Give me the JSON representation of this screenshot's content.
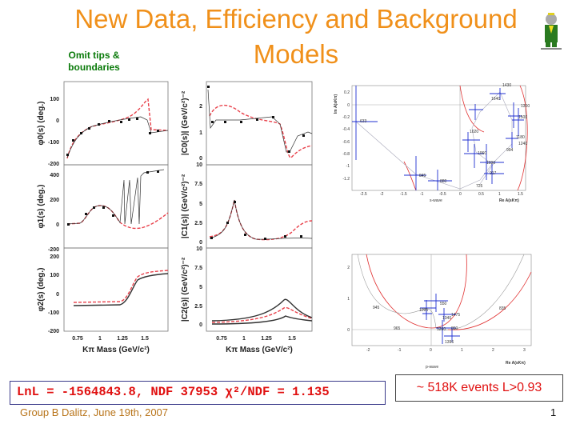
{
  "slide": {
    "title": "New Data, Efficiency and Background Models",
    "note": "Omit tips & boundaries",
    "fit_result": "LnL = -1564843.8, NDF 37953 χ²/NDF = 1.135",
    "events_box": "~ 518K events L>0.93",
    "footer": "Group B Dalitz, June 19th, 2007",
    "page_number": "1",
    "logo": "babar-elephant-logo"
  },
  "left_plots": {
    "x_ticks": [
      "0.75",
      "1",
      "1.25",
      "1.5"
    ],
    "x_label": "Kπ Mass (GeV/c²)",
    "phi0": {
      "ylabel": "φ0(s) (deg.)",
      "ticks": [
        "100",
        "0",
        "-100",
        "-200"
      ]
    },
    "phi1": {
      "ylabel": "φ1(s) (deg.)",
      "ticks": [
        "400",
        "200",
        "0",
        "-200"
      ]
    },
    "phi2": {
      "ylabel": "φ2(s) (deg.)",
      "ticks": [
        "200",
        "100",
        "0",
        "-100",
        "-200"
      ]
    },
    "c0": {
      "ylabel": "|C0(s)| (GeV/c²)⁻²",
      "ticks": [
        "2",
        "1",
        "0"
      ]
    },
    "c1": {
      "ylabel": "|C1(s)| (GeV/c²)⁻²",
      "ticks": [
        "10",
        "7.5",
        "5",
        "2.5",
        "0"
      ]
    },
    "c2": {
      "ylabel": "|C2(s)| (GeV/c²)⁻²",
      "ticks": [
        "10",
        "7.5",
        "5",
        "2.5",
        "0"
      ]
    }
  },
  "argand_top": {
    "ylabel": "Im A(sKπ)",
    "xlabel": "Re A(sKπ)",
    "title_below": "s-wave",
    "y_ticks": [
      "0.2",
      "0",
      "-0.2",
      "-0.4",
      "-0.6",
      "-0.8",
      "-1",
      "-1.2"
    ],
    "x_ticks": [
      "-2.5",
      "-2",
      "-1.5",
      "-1",
      "-0.5",
      "0",
      "0.5",
      "1",
      "1.5"
    ],
    "point_labels": [
      "633",
      "845",
      "880",
      "725",
      "1020",
      "1060",
      "1090",
      "917",
      "994",
      "1240",
      "1180",
      "1300",
      "1430",
      "1640",
      "1500"
    ]
  },
  "argand_bottom": {
    "xlabel": "Re A(sKπ)",
    "title_below": "p-wave",
    "y_ticks": [
      "2",
      "1",
      "0"
    ],
    "x_ticks": [
      "-2",
      "-1",
      "0",
      "1",
      "2",
      "3"
    ],
    "point_labels": [
      "945",
      "965",
      "1095",
      "550",
      "1475",
      "1340",
      "835",
      "1260",
      "860",
      "1396"
    ]
  },
  "colors": {
    "title": "#f0901a",
    "note": "#0a7a0a",
    "fit_text": "#e01010",
    "footer": "#b8741a",
    "model": "#e8404a",
    "data": "#111111",
    "argand_points": "#2030d0"
  }
}
